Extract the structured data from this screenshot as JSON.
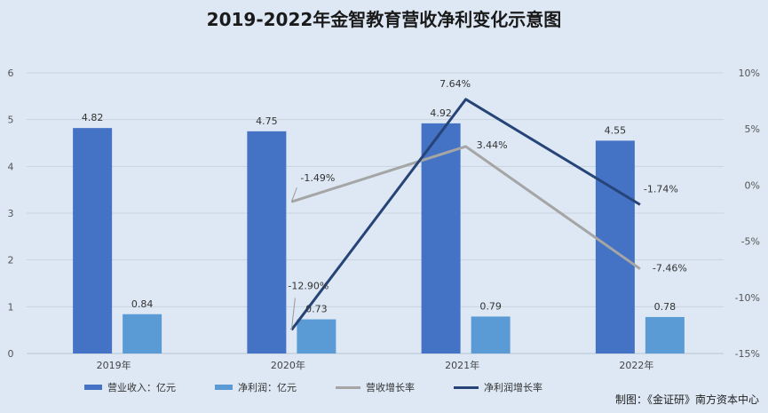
{
  "chart_data": {
    "type": "bar",
    "title": "2019-2022年金智教育营收净利变化示意图",
    "categories": [
      "2019年",
      "2020年",
      "2021年",
      "2022年"
    ],
    "ylim": [
      0,
      6
    ],
    "y2lim": [
      -15,
      10
    ],
    "y_ticks": [
      "0",
      "1",
      "2",
      "3",
      "4",
      "5",
      "6"
    ],
    "y2_ticks": [
      "-15%",
      "-10%",
      "-5%",
      "0%",
      "5%",
      "10%"
    ],
    "grid": true,
    "legend_position": "bottom",
    "bar_series": [
      {
        "name": "营业收入：亿元",
        "values": [
          4.82,
          4.75,
          4.92,
          4.55
        ],
        "labels": [
          "4.82",
          "4.75",
          "4.92",
          "4.55"
        ],
        "color": "#4472c4"
      },
      {
        "name": "净利润：亿元",
        "values": [
          0.84,
          0.73,
          0.79,
          0.78
        ],
        "labels": [
          "0.84",
          "0.73",
          "0.79",
          "0.78"
        ],
        "color": "#5b9bd5"
      }
    ],
    "line_series": [
      {
        "name": "营收增长率",
        "values": [
          null,
          -1.49,
          3.44,
          -7.46
        ],
        "labels": [
          "",
          "-1.49%",
          "3.44%",
          "-7.46%"
        ],
        "color": "#a5a5a5"
      },
      {
        "name": "净利润增长率",
        "values": [
          null,
          -12.9,
          7.64,
          -1.74
        ],
        "labels": [
          "",
          "-12.90%",
          "7.64%",
          "-1.74%"
        ],
        "color": "#264478"
      }
    ]
  },
  "credit": "制图：《金证研》南方资本中心"
}
